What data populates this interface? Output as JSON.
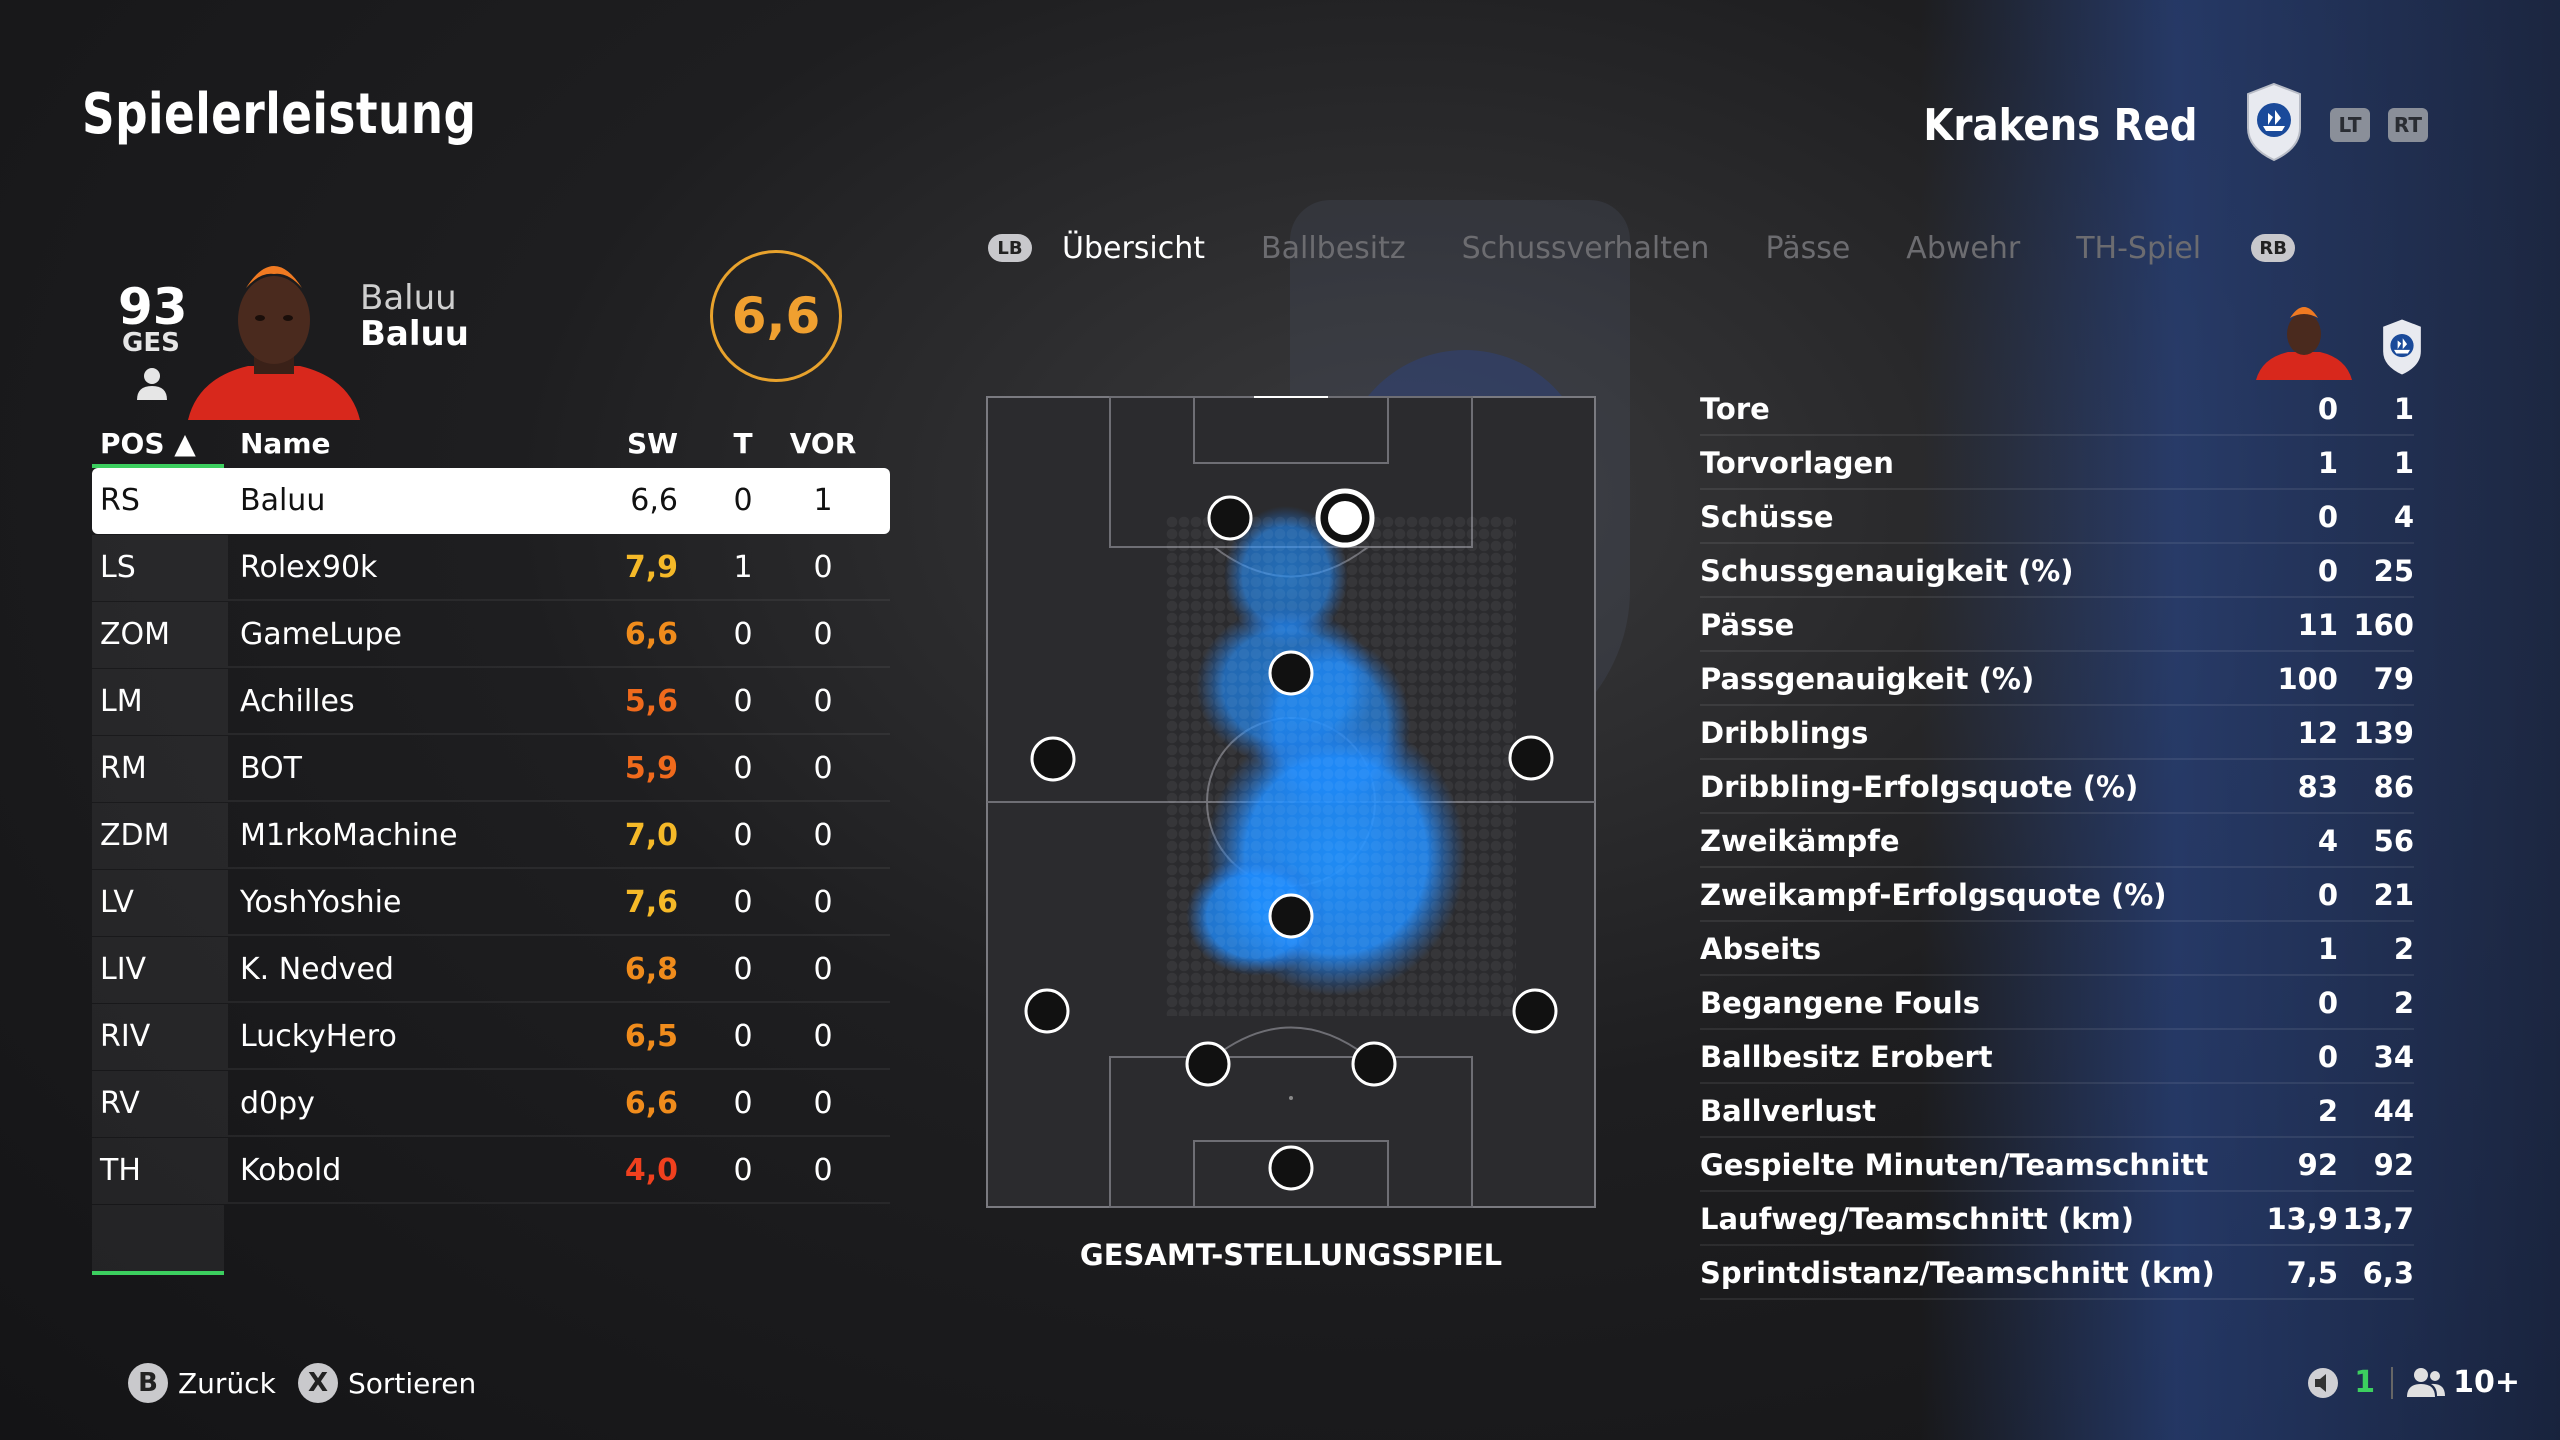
{
  "screen": {
    "title": "Spielerleistung"
  },
  "team": {
    "name": "Krakens Red",
    "lt": "LT",
    "rt": "RT"
  },
  "player": {
    "overall": "93",
    "overall_label": "GES",
    "first_name": "Baluu",
    "last_name": "Baluu",
    "rating": "6,6"
  },
  "table": {
    "headers": {
      "pos": "POS ▲",
      "name": "Name",
      "sw": "SW",
      "t": "T",
      "vor": "VOR"
    },
    "rows": [
      {
        "pos": "RS",
        "name": "Baluu",
        "sw": "6,6",
        "t": "0",
        "vor": "1",
        "sw_color": "#111111"
      },
      {
        "pos": "LS",
        "name": "Rolex90k",
        "sw": "7,9",
        "t": "1",
        "vor": "0",
        "sw_color": "#f5b928"
      },
      {
        "pos": "ZOM",
        "name": "GameLupe",
        "sw": "6,6",
        "t": "0",
        "vor": "0",
        "sw_color": "#f08c1c"
      },
      {
        "pos": "LM",
        "name": "Achilles",
        "sw": "5,6",
        "t": "0",
        "vor": "0",
        "sw_color": "#f06a1c"
      },
      {
        "pos": "RM",
        "name": "BOT",
        "sw": "5,9",
        "t": "0",
        "vor": "0",
        "sw_color": "#f06a1c"
      },
      {
        "pos": "ZDM",
        "name": "M1rkoMachine",
        "sw": "7,0",
        "t": "0",
        "vor": "0",
        "sw_color": "#f5b928"
      },
      {
        "pos": "LV",
        "name": "YoshYoshie",
        "sw": "7,6",
        "t": "0",
        "vor": "0",
        "sw_color": "#f5b928"
      },
      {
        "pos": "LIV",
        "name": "K. Nedved",
        "sw": "6,8",
        "t": "0",
        "vor": "0",
        "sw_color": "#f08c1c"
      },
      {
        "pos": "RIV",
        "name": "LuckyHero",
        "sw": "6,5",
        "t": "0",
        "vor": "0",
        "sw_color": "#f08c1c"
      },
      {
        "pos": "RV",
        "name": "d0py",
        "sw": "6,6",
        "t": "0",
        "vor": "0",
        "sw_color": "#f08c1c"
      },
      {
        "pos": "TH",
        "name": "Kobold",
        "sw": "4,0",
        "t": "0",
        "vor": "0",
        "sw_color": "#f0401e"
      }
    ]
  },
  "tabs": {
    "lb": "LB",
    "rb": "RB",
    "items": [
      "Übersicht",
      "Ballbesitz",
      "Schussverhalten",
      "Pässe",
      "Abwehr",
      "TH-Spiel"
    ],
    "active": "Übersicht"
  },
  "pitch": {
    "label": "GESAMT-STELLUNGSSPIEL"
  },
  "stats": [
    {
      "label": "Tore",
      "player": "0",
      "team": "1"
    },
    {
      "label": "Torvorlagen",
      "player": "1",
      "team": "1"
    },
    {
      "label": "Schüsse",
      "player": "0",
      "team": "4"
    },
    {
      "label": "Schussgenauigkeit (%)",
      "player": "0",
      "team": "25"
    },
    {
      "label": "Pässe",
      "player": "11",
      "team": "160"
    },
    {
      "label": "Passgenauigkeit (%)",
      "player": "100",
      "team": "79"
    },
    {
      "label": "Dribblings",
      "player": "12",
      "team": "139"
    },
    {
      "label": "Dribbling-Erfolgsquote (%)",
      "player": "83",
      "team": "86"
    },
    {
      "label": "Zweikämpfe",
      "player": "4",
      "team": "56"
    },
    {
      "label": "Zweikampf-Erfolgsquote (%)",
      "player": "0",
      "team": "21"
    },
    {
      "label": "Abseits",
      "player": "1",
      "team": "2"
    },
    {
      "label": "Begangene Fouls",
      "player": "0",
      "team": "2"
    },
    {
      "label": "Ballbesitz Erobert",
      "player": "0",
      "team": "34"
    },
    {
      "label": "Ballverlust",
      "player": "2",
      "team": "44"
    },
    {
      "label": "Gespielte Minuten/Teamschnitt",
      "player": "92",
      "team": "92"
    },
    {
      "label": "Laufweg/Teamschnitt (km)",
      "player": "13,9",
      "team": "13,7"
    },
    {
      "label": "Sprintdistanz/Teamschnitt (km)",
      "player": "7,5",
      "team": "6,3"
    }
  ],
  "footer": {
    "back_key": "B",
    "back_label": "Zurück",
    "sort_key": "X",
    "sort_label": "Sortieren",
    "party_count": "1",
    "players_count": "10+"
  },
  "colors": {
    "accent_green": "#3ccf5f",
    "rating_orange": "#f0a030",
    "heatmap_blue": "#1e90ff"
  }
}
